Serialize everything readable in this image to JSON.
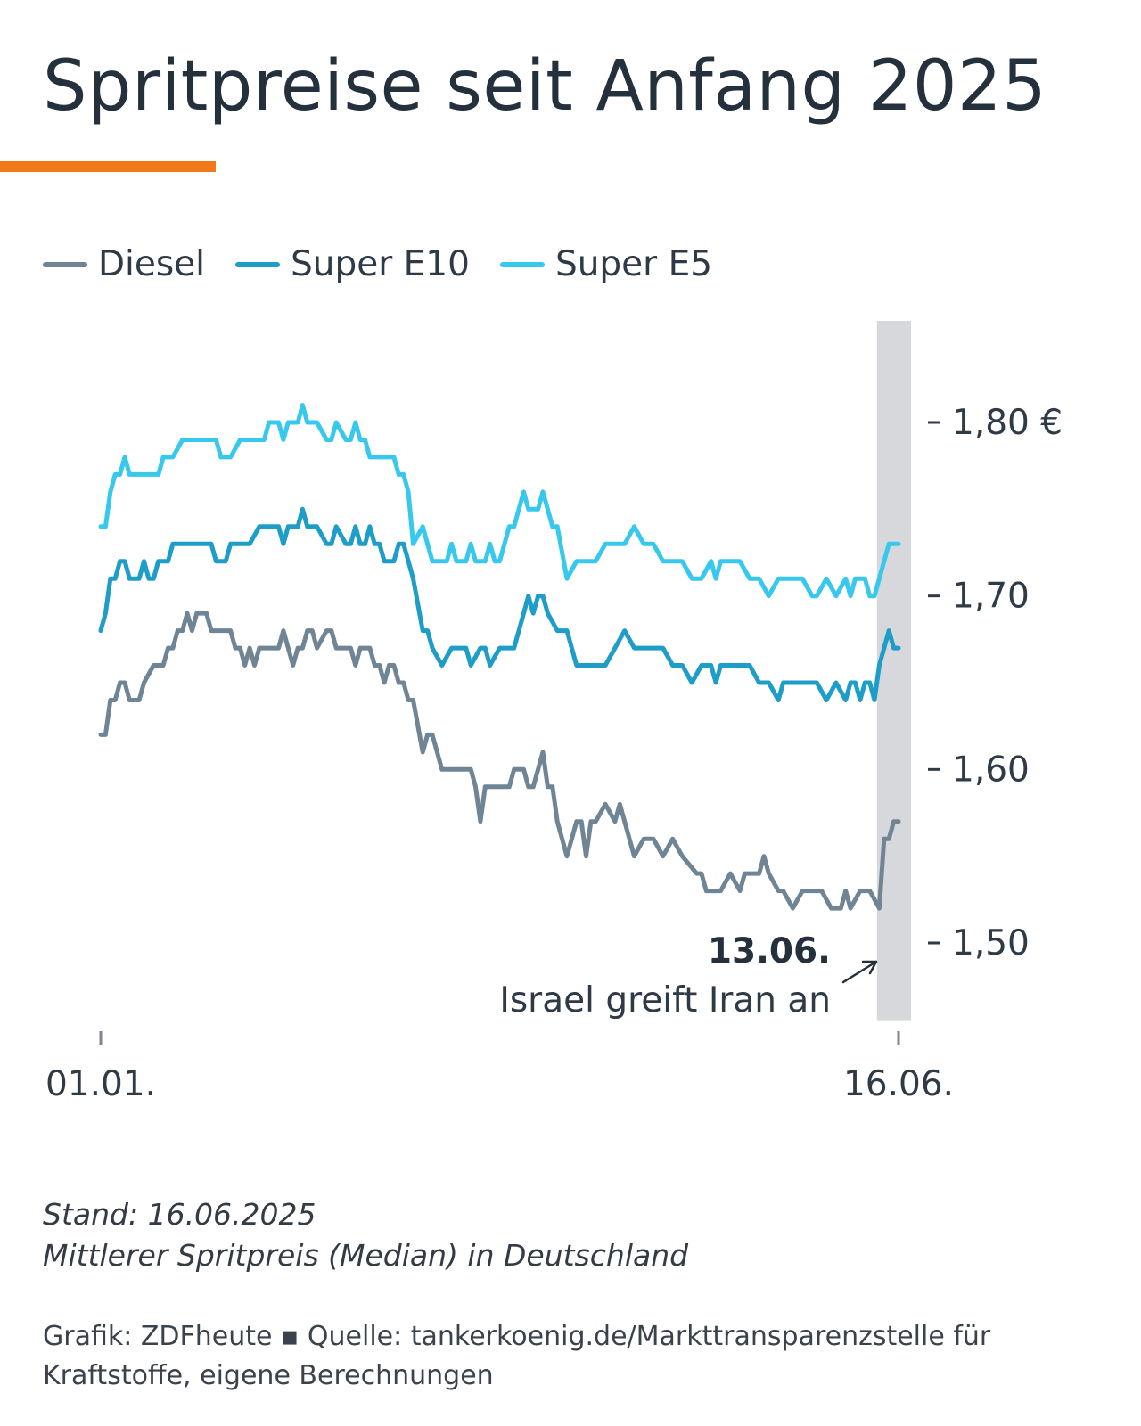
{
  "title": "Spritpreise seit Anfang 2025",
  "accent_color": "#f07a1a",
  "legend": [
    {
      "label": "Diesel",
      "color": "#6f8596"
    },
    {
      "label": "Super E10",
      "color": "#1d9dc7"
    },
    {
      "label": "Super E5",
      "color": "#37c8ee"
    }
  ],
  "footnote": {
    "stand": "Stand: 16.06.2025",
    "description": "Mittlerer Spritpreis (Median) in Deutschland"
  },
  "source": "Grafik: ZDFheute ▪ Quelle: tankerkoenig.de/Markttransparenzstelle für Kraftstoffe, eigene Berechnungen",
  "chart_data": {
    "type": "line",
    "title": "Spritpreise seit Anfang 2025",
    "xlabel": "",
    "ylabel": "",
    "x_range": [
      1,
      167
    ],
    "x_tick_labels": [
      {
        "x": 1,
        "label": "01.01."
      },
      {
        "x": 167,
        "label": "16.06."
      }
    ],
    "ylim": [
      1.455,
      1.86
    ],
    "y_ticks": [
      {
        "value": 1.5,
        "label": "1,50"
      },
      {
        "value": 1.6,
        "label": "1,60"
      },
      {
        "value": 1.7,
        "label": "1,70"
      },
      {
        "value": 1.8,
        "label": "1,80 €"
      }
    ],
    "highlight": {
      "x_from": 164,
      "x_to": 167,
      "color": "#d6d8db"
    },
    "annotation": {
      "date": "13.06.",
      "text": "Israel greift Iran an",
      "x": 164
    },
    "series": [
      {
        "name": "Diesel",
        "color": "#6f8596",
        "x": [
          1,
          2,
          3,
          4,
          5,
          6,
          7,
          8,
          9,
          10,
          12,
          14,
          15,
          16,
          17,
          18,
          19,
          20,
          21,
          22,
          23,
          24,
          26,
          28,
          29,
          30,
          31,
          32,
          33,
          34,
          36,
          38,
          39,
          40,
          41,
          42,
          43,
          44,
          45,
          46,
          48,
          49,
          50,
          52,
          53,
          54,
          55,
          56,
          57,
          58,
          59,
          60,
          61,
          62,
          63,
          64,
          65,
          66,
          68,
          69,
          70,
          72,
          74,
          76,
          78,
          79,
          80,
          81,
          82,
          84,
          86,
          87,
          88,
          89,
          90,
          91,
          92,
          93,
          94,
          95,
          96,
          98,
          100,
          101,
          102,
          103,
          104,
          106,
          108,
          109,
          110,
          112,
          114,
          115,
          116,
          118,
          120,
          122,
          125,
          126,
          127,
          130,
          132,
          134,
          135,
          136,
          137,
          138,
          139,
          140,
          142,
          143,
          145,
          147,
          148,
          150,
          151,
          153,
          155,
          156,
          157,
          159,
          161,
          163,
          164,
          165,
          166,
          167
        ],
        "values": [
          1.62,
          1.62,
          1.64,
          1.64,
          1.65,
          1.65,
          1.64,
          1.64,
          1.64,
          1.65,
          1.66,
          1.66,
          1.67,
          1.67,
          1.68,
          1.68,
          1.69,
          1.68,
          1.69,
          1.69,
          1.69,
          1.68,
          1.68,
          1.68,
          1.67,
          1.67,
          1.66,
          1.67,
          1.66,
          1.67,
          1.67,
          1.67,
          1.68,
          1.67,
          1.66,
          1.67,
          1.67,
          1.68,
          1.68,
          1.67,
          1.68,
          1.68,
          1.67,
          1.67,
          1.67,
          1.66,
          1.67,
          1.67,
          1.67,
          1.66,
          1.66,
          1.65,
          1.66,
          1.66,
          1.65,
          1.65,
          1.64,
          1.64,
          1.61,
          1.62,
          1.62,
          1.6,
          1.6,
          1.6,
          1.6,
          1.59,
          1.57,
          1.59,
          1.59,
          1.59,
          1.59,
          1.6,
          1.6,
          1.6,
          1.59,
          1.59,
          1.6,
          1.61,
          1.59,
          1.59,
          1.57,
          1.55,
          1.57,
          1.57,
          1.55,
          1.57,
          1.57,
          1.58,
          1.57,
          1.58,
          1.57,
          1.55,
          1.56,
          1.56,
          1.56,
          1.55,
          1.56,
          1.55,
          1.54,
          1.54,
          1.53,
          1.53,
          1.54,
          1.53,
          1.54,
          1.54,
          1.54,
          1.54,
          1.55,
          1.54,
          1.53,
          1.53,
          1.52,
          1.53,
          1.53,
          1.53,
          1.53,
          1.52,
          1.52,
          1.53,
          1.52,
          1.53,
          1.53,
          1.52,
          1.56,
          1.56,
          1.57,
          1.57
        ]
      },
      {
        "name": "Super E10",
        "color": "#1d9dc7",
        "x": [
          1,
          2,
          3,
          4,
          5,
          6,
          7,
          8,
          9,
          10,
          11,
          12,
          13,
          14,
          15,
          16,
          17,
          18,
          20,
          22,
          24,
          25,
          26,
          27,
          28,
          30,
          32,
          34,
          35,
          36,
          38,
          39,
          40,
          41,
          42,
          43,
          44,
          45,
          46,
          48,
          49,
          50,
          52,
          53,
          54,
          55,
          56,
          57,
          58,
          59,
          60,
          61,
          62,
          63,
          64,
          65,
          66,
          68,
          69,
          70,
          72,
          74,
          76,
          77,
          78,
          80,
          81,
          82,
          84,
          86,
          87,
          88,
          89,
          90,
          91,
          92,
          93,
          94,
          96,
          98,
          100,
          102,
          104,
          106,
          108,
          110,
          112,
          114,
          115,
          116,
          118,
          120,
          122,
          124,
          126,
          128,
          129,
          130,
          132,
          134,
          136,
          138,
          140,
          142,
          143,
          145,
          147,
          149,
          150,
          152,
          154,
          156,
          157,
          158,
          159,
          160,
          161,
          162,
          163,
          164,
          165,
          166,
          167
        ],
        "values": [
          1.68,
          1.69,
          1.71,
          1.71,
          1.72,
          1.72,
          1.71,
          1.71,
          1.71,
          1.72,
          1.71,
          1.71,
          1.72,
          1.72,
          1.72,
          1.73,
          1.73,
          1.73,
          1.73,
          1.73,
          1.73,
          1.72,
          1.72,
          1.72,
          1.73,
          1.73,
          1.73,
          1.74,
          1.74,
          1.74,
          1.74,
          1.73,
          1.74,
          1.74,
          1.74,
          1.75,
          1.74,
          1.74,
          1.74,
          1.73,
          1.73,
          1.74,
          1.73,
          1.73,
          1.74,
          1.73,
          1.73,
          1.74,
          1.73,
          1.73,
          1.72,
          1.72,
          1.72,
          1.73,
          1.73,
          1.72,
          1.71,
          1.68,
          1.68,
          1.67,
          1.66,
          1.67,
          1.67,
          1.67,
          1.66,
          1.67,
          1.67,
          1.66,
          1.67,
          1.67,
          1.67,
          1.68,
          1.69,
          1.7,
          1.69,
          1.7,
          1.7,
          1.69,
          1.68,
          1.68,
          1.66,
          1.66,
          1.66,
          1.66,
          1.67,
          1.68,
          1.67,
          1.67,
          1.67,
          1.67,
          1.67,
          1.66,
          1.66,
          1.65,
          1.66,
          1.66,
          1.65,
          1.66,
          1.66,
          1.66,
          1.66,
          1.65,
          1.65,
          1.64,
          1.65,
          1.65,
          1.65,
          1.65,
          1.65,
          1.64,
          1.65,
          1.64,
          1.65,
          1.65,
          1.64,
          1.65,
          1.65,
          1.64,
          1.66,
          1.67,
          1.68,
          1.67,
          1.67
        ]
      },
      {
        "name": "Super E5",
        "color": "#37c8ee",
        "x": [
          1,
          2,
          3,
          4,
          5,
          6,
          7,
          8,
          9,
          10,
          11,
          12,
          13,
          14,
          16,
          18,
          20,
          22,
          24,
          25,
          26,
          27,
          28,
          30,
          32,
          34,
          35,
          36,
          38,
          39,
          40,
          41,
          42,
          43,
          44,
          45,
          46,
          48,
          49,
          50,
          52,
          53,
          54,
          55,
          56,
          57,
          58,
          59,
          60,
          61,
          62,
          63,
          64,
          65,
          66,
          68,
          69,
          70,
          71,
          72,
          73,
          74,
          75,
          76,
          77,
          78,
          79,
          80,
          81,
          82,
          83,
          84,
          85,
          86,
          87,
          88,
          89,
          90,
          91,
          92,
          93,
          94,
          95,
          96,
          98,
          100,
          101,
          102,
          104,
          106,
          108,
          110,
          112,
          114,
          115,
          116,
          118,
          120,
          122,
          124,
          126,
          128,
          129,
          130,
          132,
          134,
          136,
          138,
          140,
          142,
          143,
          145,
          147,
          149,
          150,
          152,
          154,
          156,
          157,
          158,
          159,
          160,
          161,
          162,
          163,
          164,
          165,
          166,
          167
        ],
        "values": [
          1.74,
          1.74,
          1.76,
          1.77,
          1.77,
          1.78,
          1.77,
          1.77,
          1.77,
          1.77,
          1.77,
          1.77,
          1.77,
          1.78,
          1.78,
          1.79,
          1.79,
          1.79,
          1.79,
          1.79,
          1.78,
          1.78,
          1.78,
          1.79,
          1.79,
          1.79,
          1.79,
          1.8,
          1.8,
          1.79,
          1.8,
          1.8,
          1.8,
          1.81,
          1.8,
          1.8,
          1.8,
          1.79,
          1.79,
          1.8,
          1.79,
          1.79,
          1.8,
          1.79,
          1.79,
          1.78,
          1.78,
          1.78,
          1.78,
          1.78,
          1.78,
          1.77,
          1.77,
          1.76,
          1.73,
          1.74,
          1.73,
          1.72,
          1.72,
          1.72,
          1.72,
          1.73,
          1.72,
          1.72,
          1.72,
          1.73,
          1.72,
          1.72,
          1.72,
          1.73,
          1.72,
          1.72,
          1.73,
          1.74,
          1.74,
          1.75,
          1.76,
          1.75,
          1.75,
          1.75,
          1.76,
          1.75,
          1.74,
          1.74,
          1.71,
          1.72,
          1.72,
          1.72,
          1.72,
          1.73,
          1.73,
          1.73,
          1.74,
          1.73,
          1.73,
          1.73,
          1.72,
          1.72,
          1.72,
          1.71,
          1.71,
          1.72,
          1.71,
          1.72,
          1.72,
          1.72,
          1.71,
          1.71,
          1.7,
          1.71,
          1.71,
          1.71,
          1.71,
          1.7,
          1.7,
          1.71,
          1.7,
          1.71,
          1.7,
          1.71,
          1.71,
          1.71,
          1.7,
          1.7,
          1.71,
          1.72,
          1.73,
          1.73,
          1.73
        ]
      }
    ]
  }
}
